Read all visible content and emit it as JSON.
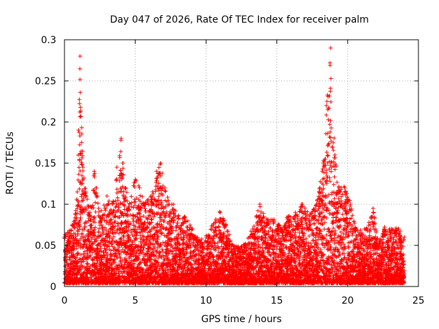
{
  "chart_data": {
    "type": "scatter",
    "title": "Day 047 of 2026, Rate Of TEC Index for receiver palm",
    "xlabel": "GPS time / hours",
    "ylabel": "ROTI / TECUs",
    "xlim": [
      0,
      25
    ],
    "ylim": [
      0,
      0.3
    ],
    "x_ticks": [
      0,
      5,
      10,
      15,
      20,
      25
    ],
    "x_tick_labels": [
      "0",
      "5",
      "10",
      "15",
      "20",
      "25"
    ],
    "y_ticks": [
      0,
      0.05,
      0.1,
      0.15,
      0.2,
      0.25,
      0.3
    ],
    "y_tick_labels": [
      "0",
      "0.05",
      "0.1",
      "0.15",
      "0.2",
      "0.25",
      "0.3"
    ],
    "grid": true,
    "marker": "plus",
    "color": "#ff0000",
    "series": [
      {
        "name": "ROTI",
        "note": "dense per-satellite ROTI points over 0-24 h; peak envelope below (hour, max ROTI)",
        "envelope": [
          [
            0.0,
            0.06
          ],
          [
            0.3,
            0.065
          ],
          [
            0.6,
            0.075
          ],
          [
            0.9,
            0.115
          ],
          [
            1.1,
            0.28
          ],
          [
            1.3,
            0.145
          ],
          [
            1.5,
            0.115
          ],
          [
            1.8,
            0.09
          ],
          [
            2.1,
            0.14
          ],
          [
            2.5,
            0.085
          ],
          [
            3.0,
            0.11
          ],
          [
            3.4,
            0.1
          ],
          [
            3.7,
            0.145
          ],
          [
            4.0,
            0.18
          ],
          [
            4.3,
            0.12
          ],
          [
            4.6,
            0.1
          ],
          [
            5.0,
            0.13
          ],
          [
            5.3,
            0.12
          ],
          [
            5.7,
            0.1
          ],
          [
            6.1,
            0.11
          ],
          [
            6.5,
            0.14
          ],
          [
            6.8,
            0.15
          ],
          [
            7.1,
            0.12
          ],
          [
            7.4,
            0.1
          ],
          [
            7.7,
            0.1
          ],
          [
            8.0,
            0.085
          ],
          [
            8.5,
            0.085
          ],
          [
            9.0,
            0.07
          ],
          [
            9.5,
            0.055
          ],
          [
            10.0,
            0.06
          ],
          [
            10.5,
            0.075
          ],
          [
            11.0,
            0.09
          ],
          [
            11.4,
            0.075
          ],
          [
            11.8,
            0.05
          ],
          [
            12.3,
            0.045
          ],
          [
            12.8,
            0.05
          ],
          [
            13.3,
            0.07
          ],
          [
            13.8,
            0.1
          ],
          [
            14.3,
            0.08
          ],
          [
            14.8,
            0.08
          ],
          [
            15.3,
            0.07
          ],
          [
            15.8,
            0.085
          ],
          [
            16.3,
            0.09
          ],
          [
            16.8,
            0.1
          ],
          [
            17.3,
            0.085
          ],
          [
            17.8,
            0.1
          ],
          [
            18.2,
            0.14
          ],
          [
            18.5,
            0.22
          ],
          [
            18.8,
            0.29
          ],
          [
            19.1,
            0.16
          ],
          [
            19.4,
            0.12
          ],
          [
            19.8,
            0.12
          ],
          [
            20.2,
            0.1
          ],
          [
            20.6,
            0.07
          ],
          [
            21.0,
            0.065
          ],
          [
            21.4,
            0.07
          ],
          [
            21.8,
            0.095
          ],
          [
            22.2,
            0.05
          ],
          [
            22.6,
            0.07
          ],
          [
            23.1,
            0.07
          ],
          [
            23.6,
            0.07
          ],
          [
            24.0,
            0.06
          ]
        ]
      }
    ]
  }
}
